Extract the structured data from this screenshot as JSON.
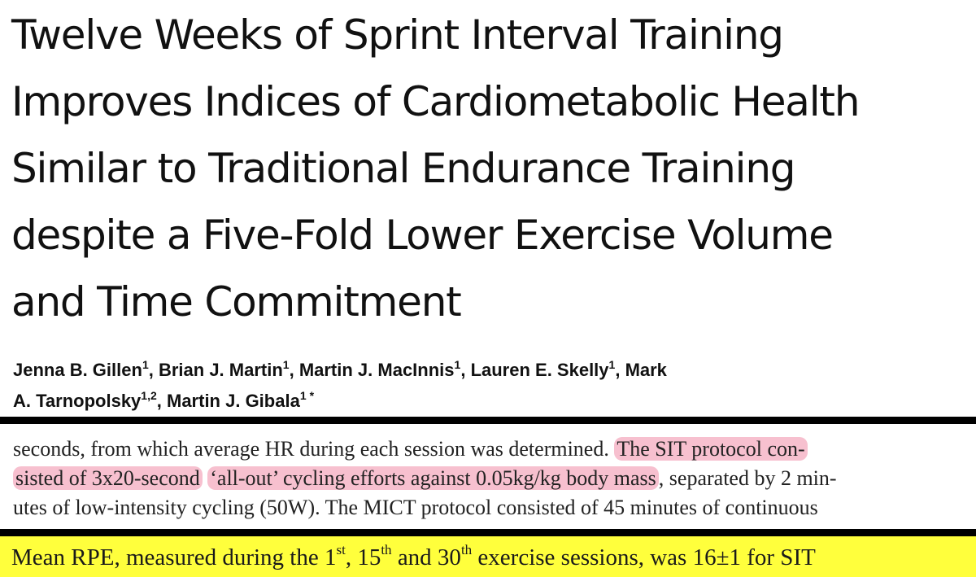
{
  "title": {
    "lines": [
      "Twelve Weeks of Sprint Interval Training",
      "Improves Indices of Cardiometabolic Health",
      "Similar to Traditional Endurance Training",
      "despite a Five-Fold Lower Exercise Volume",
      "and Time Commitment"
    ]
  },
  "authors": {
    "line1": [
      {
        "name": "Jenna B. Gillen",
        "sup": "1",
        "sep": ", "
      },
      {
        "name": "Brian J. Martin",
        "sup": "1",
        "sep": ", "
      },
      {
        "name": "Martin J. MacInnis",
        "sup": "1",
        "sep": ", "
      },
      {
        "name": "Lauren E. Skelly",
        "sup": "1",
        "sep": ", "
      },
      {
        "name": "Mark",
        "sup": "",
        "sep": ""
      }
    ],
    "line2": [
      {
        "name": "A. Tarnopolsky",
        "sup": "1,2",
        "sep": ", "
      },
      {
        "name": "Martin J. Gibala",
        "sup": "1",
        "sep": ""
      }
    ],
    "corresponding_mark": "*"
  },
  "excerpt": {
    "line1_plain": "seconds, from which average HR during each session was determined. ",
    "line1_highlight": "The SIT protocol con-",
    "line2_highlight_a": "sisted of 3x20-second",
    "line2_space": " ",
    "line2_highlight_b": "‘all-out’ cycling efforts against 0.05kg/kg body mass",
    "line2_plain": ", separated by 2 min-",
    "line3": "utes of low-intensity cycling (50W). The MICT protocol consisted of 45 minutes of continuous"
  },
  "highlight_line": {
    "part1": "Mean RPE, measured during the 1",
    "sup1": "st",
    "part2": ", 15",
    "sup2": "th",
    "part3": " and 30",
    "sup3": "th",
    "part4": " exercise sessions, was 16±1 for SIT"
  },
  "colors": {
    "pink_highlight": "#f7c0cf",
    "yellow_highlight": "#ffff3c",
    "divider": "#000000"
  }
}
